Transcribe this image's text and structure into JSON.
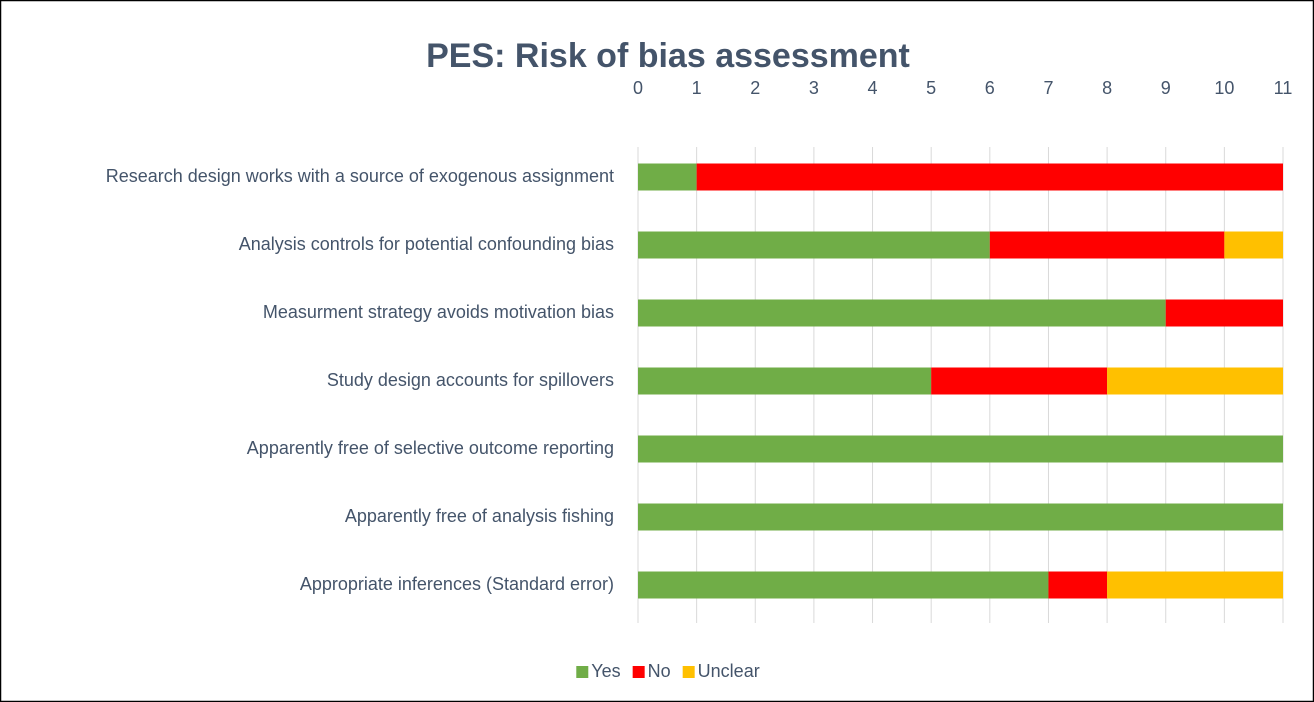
{
  "chart_data": {
    "type": "bar",
    "orientation": "horizontal",
    "stacked": true,
    "title": "PES: Risk of bias assessment",
    "categories": [
      "Research design works with a source of exogenous assignment",
      "Analysis controls for potential confounding bias",
      "Measurment strategy avoids motivation bias",
      "Study design accounts for spillovers",
      "Apparently free of selective outcome reporting",
      "Apparently free of analysis fishing",
      "Appropriate inferences (Standard error)"
    ],
    "series": [
      {
        "name": "Yes",
        "color": "#70ad47",
        "values": [
          1,
          6,
          9,
          5,
          11,
          11,
          7
        ]
      },
      {
        "name": "No",
        "color": "#ff0000",
        "values": [
          10,
          4,
          2,
          3,
          0,
          0,
          1
        ]
      },
      {
        "name": "Unclear",
        "color": "#ffc000",
        "values": [
          0,
          1,
          0,
          3,
          0,
          0,
          3
        ]
      }
    ],
    "xlim": [
      0,
      11
    ],
    "xticks": [
      0,
      1,
      2,
      3,
      4,
      5,
      6,
      7,
      8,
      9,
      10,
      11
    ],
    "grid": true,
    "legend": "bottom"
  }
}
